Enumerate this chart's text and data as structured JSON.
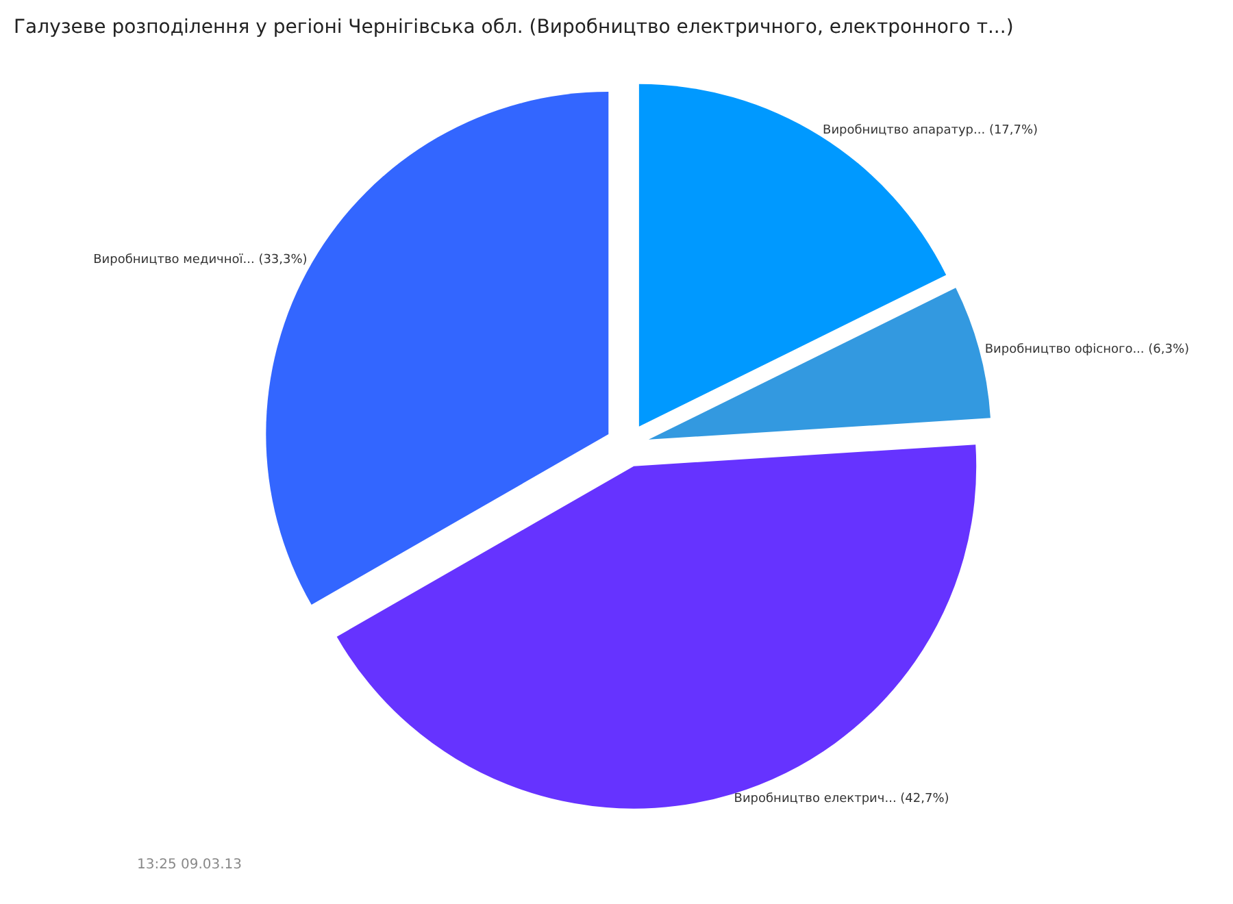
{
  "chart_data": {
    "type": "pie",
    "title": "Галузеве розподілення у регіоні Чернігівська обл. (Виробництво електричного, електронного т...)",
    "categories": [
      "Виробництво апаратур...",
      "Виробництво офісного...",
      "Виробництво електрич...",
      "Виробництво медичної..."
    ],
    "values": [
      17.7,
      6.3,
      42.7,
      33.3
    ],
    "value_labels": [
      "(17,7%)",
      "(6,3%)",
      "(42,7%)",
      "(33,3%)"
    ],
    "colors": [
      "#0099ff",
      "#3399e0",
      "#6633ff",
      "#3366ff"
    ],
    "annotations": [
      "13:25 09.03.13"
    ]
  }
}
